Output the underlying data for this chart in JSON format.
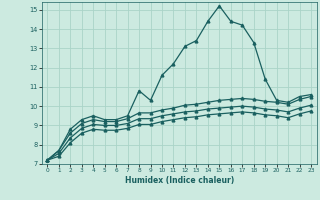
{
  "title": "",
  "xlabel": "Humidex (Indice chaleur)",
  "background_color": "#cceae0",
  "grid_color": "#aad4c8",
  "line_color": "#1a6060",
  "xlim": [
    -0.5,
    23.5
  ],
  "ylim": [
    7,
    15.4
  ],
  "xticks": [
    0,
    1,
    2,
    3,
    4,
    5,
    6,
    7,
    8,
    9,
    10,
    11,
    12,
    13,
    14,
    15,
    16,
    17,
    18,
    19,
    20,
    21,
    22,
    23
  ],
  "yticks": [
    7,
    8,
    9,
    10,
    11,
    12,
    13,
    14,
    15
  ],
  "main_x": [
    0,
    1,
    2,
    3,
    4,
    5,
    6,
    7,
    8,
    9,
    10,
    11,
    12,
    13,
    14,
    15,
    16,
    17,
    18,
    19,
    20,
    21,
    22,
    23
  ],
  "main_y": [
    7.2,
    7.7,
    8.8,
    9.3,
    9.5,
    9.3,
    9.3,
    9.5,
    10.8,
    10.3,
    11.6,
    12.2,
    13.1,
    13.4,
    14.4,
    15.2,
    14.4,
    14.2,
    13.3,
    11.4,
    10.3,
    10.2,
    10.5,
    10.6
  ],
  "line2_x": [
    0,
    1,
    2,
    3,
    4,
    5,
    6,
    7,
    8,
    9,
    10,
    11,
    12,
    13,
    14,
    15,
    16,
    17,
    18,
    19,
    20,
    21,
    22,
    23
  ],
  "line2_y": [
    7.2,
    7.7,
    8.6,
    9.1,
    9.3,
    9.2,
    9.2,
    9.35,
    9.65,
    9.65,
    9.8,
    9.9,
    10.05,
    10.1,
    10.2,
    10.3,
    10.35,
    10.4,
    10.35,
    10.25,
    10.2,
    10.1,
    10.35,
    10.5
  ],
  "line3_x": [
    0,
    1,
    2,
    3,
    4,
    5,
    6,
    7,
    8,
    9,
    10,
    11,
    12,
    13,
    14,
    15,
    16,
    17,
    18,
    19,
    20,
    21,
    22,
    23
  ],
  "line3_y": [
    7.2,
    7.55,
    8.35,
    8.85,
    9.05,
    9.0,
    9.0,
    9.1,
    9.35,
    9.35,
    9.5,
    9.6,
    9.7,
    9.75,
    9.85,
    9.9,
    9.95,
    10.0,
    9.95,
    9.85,
    9.8,
    9.7,
    9.9,
    10.05
  ],
  "line4_x": [
    0,
    1,
    2,
    3,
    4,
    5,
    6,
    7,
    8,
    9,
    10,
    11,
    12,
    13,
    14,
    15,
    16,
    17,
    18,
    19,
    20,
    21,
    22,
    23
  ],
  "line4_y": [
    7.2,
    7.4,
    8.1,
    8.6,
    8.8,
    8.75,
    8.75,
    8.85,
    9.05,
    9.05,
    9.2,
    9.3,
    9.4,
    9.45,
    9.55,
    9.6,
    9.65,
    9.7,
    9.65,
    9.55,
    9.5,
    9.4,
    9.6,
    9.75
  ]
}
